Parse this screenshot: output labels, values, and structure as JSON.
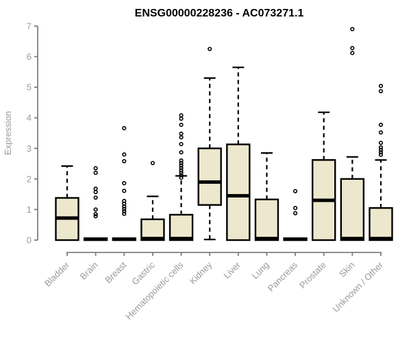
{
  "chart_data": {
    "type": "boxplot",
    "title": "ENSG00000228236 - AC073271.1",
    "ylabel": "Expression",
    "xlabel": "",
    "ylim": [
      0,
      7
    ],
    "yticks": [
      0,
      1,
      2,
      3,
      4,
      5,
      6,
      7
    ],
    "grid": false,
    "legend": "none",
    "categories": [
      "Bladder",
      "Brain",
      "Breast",
      "Gastric",
      "Hematopoietic cells",
      "Kidney",
      "Liver",
      "Lung",
      "Pancreas",
      "Prostate",
      "Skin",
      "Unknown / Other"
    ],
    "boxes": [
      {
        "category": "Bladder",
        "low": 0,
        "q1": 0,
        "median": 0.72,
        "q3": 1.38,
        "high": 2.42,
        "outliers": []
      },
      {
        "category": "Brain",
        "low": 0,
        "q1": 0,
        "median": 0.03,
        "q3": 0.06,
        "high": 0.06,
        "outliers": [
          2.35,
          2.2,
          1.68,
          1.57,
          1.39,
          1.0,
          0.85,
          0.78
        ]
      },
      {
        "category": "Breast",
        "low": 0,
        "q1": 0,
        "median": 0.03,
        "q3": 0.06,
        "high": 0.06,
        "outliers": [
          3.66,
          2.8,
          2.58,
          1.86,
          1.61,
          1.28,
          1.19,
          1.1,
          1.02,
          0.94,
          0.86
        ]
      },
      {
        "category": "Gastric",
        "low": 0,
        "q1": 0,
        "median": 0.05,
        "q3": 0.68,
        "high": 1.43,
        "outliers": [
          2.52
        ]
      },
      {
        "category": "Hematopoietic cells",
        "low": 0,
        "q1": 0,
        "median": 0.05,
        "q3": 0.83,
        "high": 2.1,
        "outliers": [
          4.08,
          3.97,
          3.77,
          3.48,
          3.36,
          3.14,
          2.87,
          2.6,
          2.52,
          2.44,
          2.36,
          2.28,
          2.2,
          2.12,
          2.04
        ]
      },
      {
        "category": "Kidney",
        "low": 0.02,
        "q1": 1.15,
        "median": 1.9,
        "q3": 3.0,
        "high": 5.3,
        "outliers": [
          6.25
        ]
      },
      {
        "category": "Liver",
        "low": 0,
        "q1": 0,
        "median": 1.45,
        "q3": 3.13,
        "high": 5.65,
        "outliers": []
      },
      {
        "category": "Lung",
        "low": 0,
        "q1": 0,
        "median": 0.05,
        "q3": 1.33,
        "high": 2.85,
        "outliers": []
      },
      {
        "category": "Pancreas",
        "low": 0,
        "q1": 0,
        "median": 0.03,
        "q3": 0.06,
        "high": 0.06,
        "outliers": [
          1.6,
          1.05,
          0.88
        ]
      },
      {
        "category": "Prostate",
        "low": 0,
        "q1": 0,
        "median": 1.3,
        "q3": 2.62,
        "high": 4.18,
        "outliers": []
      },
      {
        "category": "Skin",
        "low": 0,
        "q1": 0,
        "median": 0.05,
        "q3": 2.0,
        "high": 2.72,
        "outliers": [
          6.9,
          6.28,
          6.12
        ]
      },
      {
        "category": "Unknown / Other",
        "low": 0,
        "q1": 0,
        "median": 0.05,
        "q3": 1.05,
        "high": 2.62,
        "outliers": [
          5.04,
          4.87,
          3.77,
          3.52,
          3.18,
          3.03,
          2.95,
          2.87,
          2.79
        ]
      }
    ],
    "colors": {
      "box_fill": "#EDE8CD",
      "box_border": "#000000",
      "median": "#000000",
      "whisker": "#000000",
      "outlier": "#000000",
      "axis": "#7F7F7F",
      "tick_text": "#9A9A9A",
      "title_text": "#000000"
    }
  }
}
